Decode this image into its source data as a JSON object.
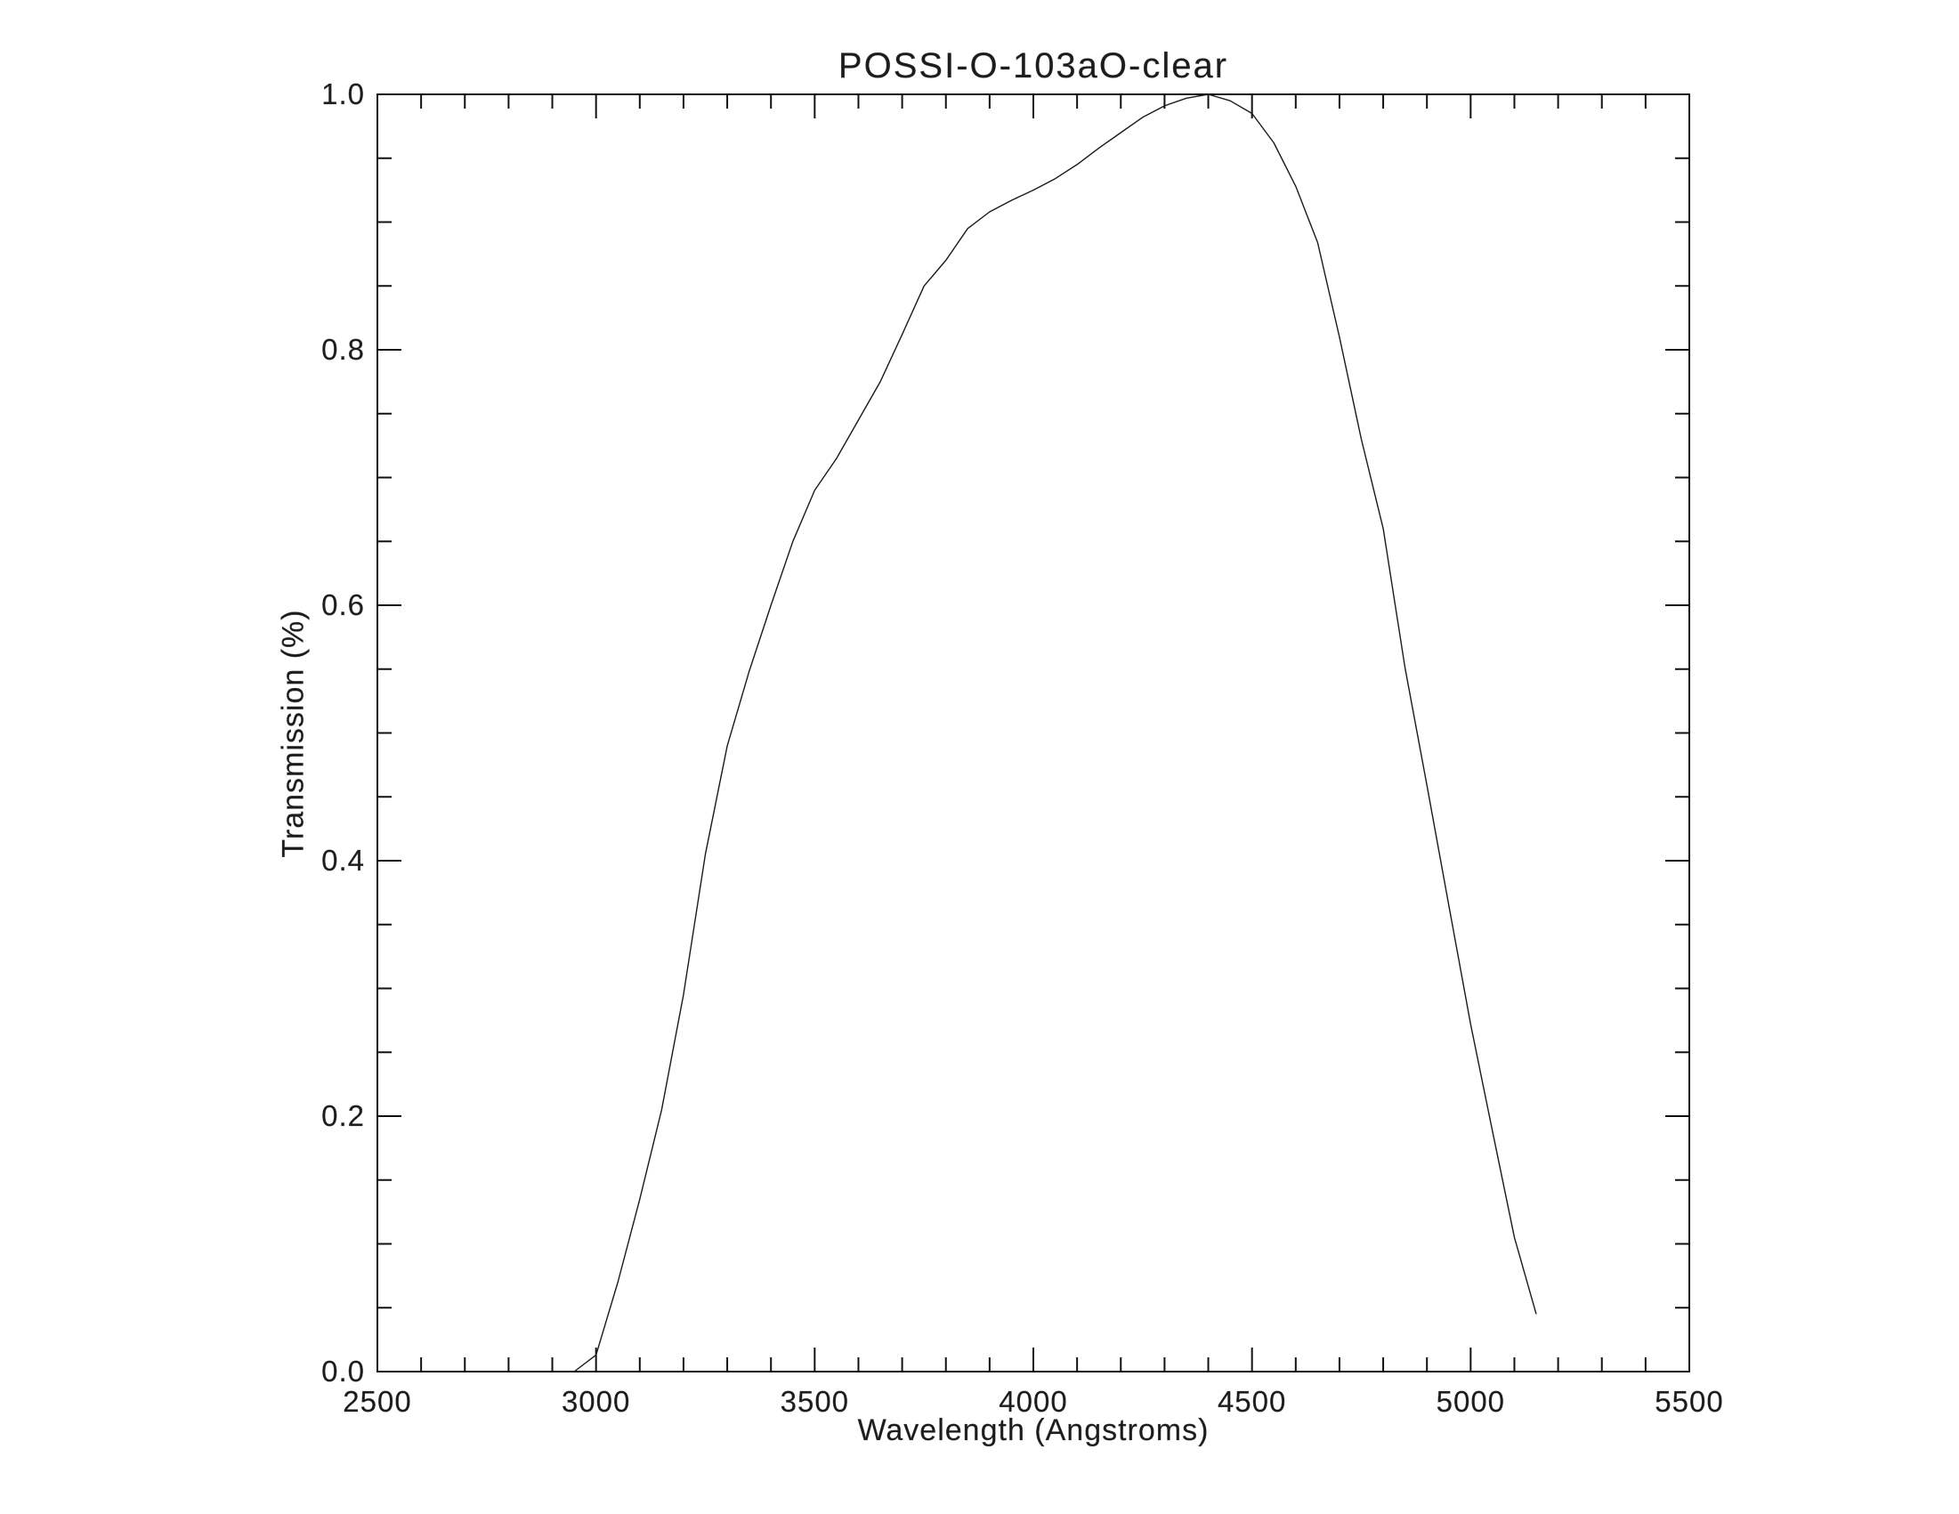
{
  "title": "POSSI-O-103aO-clear",
  "colors": {
    "background": "#ffffff",
    "axis": "#111111",
    "curve": "#1a1a1a",
    "text": "#1c1c1c"
  },
  "chart_data": {
    "type": "line",
    "title": "POSSI-O-103aO-clear",
    "xlabel": "Wavelength (Angstroms)",
    "ylabel": "Transmission (%)",
    "xlim": [
      2500,
      5500
    ],
    "ylim": [
      0.0,
      1.0
    ],
    "x_major_step": 500,
    "x_minor_step": 100,
    "y_major_step": 0.2,
    "y_minor_step": 0.05,
    "x_tick_labels": [
      "2500",
      "3000",
      "3500",
      "4000",
      "4500",
      "5000",
      "5500"
    ],
    "y_tick_labels": [
      "0.0",
      "0.2",
      "0.4",
      "0.6",
      "0.8",
      "1.0"
    ],
    "grid": false,
    "legend": false,
    "series": [
      {
        "name": "transmission",
        "x": [
          2950,
          3000,
          3050,
          3100,
          3150,
          3200,
          3250,
          3300,
          3350,
          3400,
          3450,
          3500,
          3550,
          3600,
          3650,
          3700,
          3750,
          3800,
          3850,
          3900,
          3950,
          4000,
          4050,
          4100,
          4150,
          4200,
          4250,
          4300,
          4350,
          4400,
          4450,
          4500,
          4550,
          4600,
          4650,
          4700,
          4750,
          4800,
          4850,
          4900,
          4950,
          5000,
          5050,
          5100,
          5150
        ],
        "y": [
          0.0,
          0.013,
          0.07,
          0.135,
          0.205,
          0.295,
          0.405,
          0.49,
          0.548,
          0.6,
          0.65,
          0.69,
          0.715,
          0.745,
          0.775,
          0.812,
          0.85,
          0.87,
          0.895,
          0.908,
          0.917,
          0.925,
          0.934,
          0.945,
          0.958,
          0.97,
          0.982,
          0.991,
          0.997,
          1.0,
          0.995,
          0.985,
          0.962,
          0.928,
          0.884,
          0.81,
          0.73,
          0.66,
          0.551,
          0.459,
          0.365,
          0.272,
          0.188,
          0.105,
          0.045
        ]
      }
    ]
  }
}
